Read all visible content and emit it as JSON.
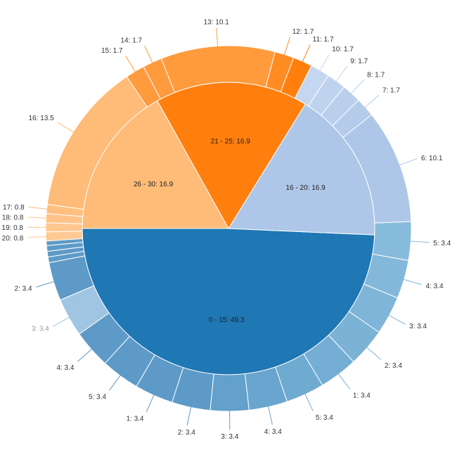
{
  "chart_data": {
    "type": "sunburst",
    "title": "",
    "inner": [
      {
        "label": "0 - 15: 49.3",
        "value": 49.3,
        "color": "#1f77b4"
      },
      {
        "label": "16 - 20: 16.9",
        "value": 16.9,
        "color": "#aec7e8"
      },
      {
        "label": "21 - 25: 16.9",
        "value": 16.9,
        "color": "#ff7f0e"
      },
      {
        "label": "26 - 30: 16.9",
        "value": 16.9,
        "color": "#ffbb78"
      }
    ],
    "outer": [
      {
        "label": "",
        "value": 0.5,
        "color": "#5d9ac7"
      },
      {
        "label": "",
        "value": 0.5,
        "color": "#5d9ac7"
      },
      {
        "label": "",
        "value": 0.5,
        "color": "#5d9ac7"
      },
      {
        "label": "",
        "value": 0.5,
        "color": "#5d9ac7"
      },
      {
        "label": "",
        "value": 0.5,
        "color": "#5d9ac7"
      },
      {
        "label": "",
        "value": 0.5,
        "color": "#5d9ac7"
      },
      {
        "label": "2: 3.4",
        "value": 3.4,
        "color": "#5d9ac7"
      },
      {
        "label": "3: 3.4",
        "value": 3.4,
        "color": "#9fc5e2",
        "faded": true
      },
      {
        "label": "4: 3.4",
        "value": 3.4,
        "color": "#5d9ac7"
      },
      {
        "label": "5: 3.4",
        "value": 3.4,
        "color": "#5d9ac7"
      },
      {
        "label": "1: 3.4",
        "value": 3.4,
        "color": "#5d9ac7"
      },
      {
        "label": "2: 3.4",
        "value": 3.4,
        "color": "#5d9ac7"
      },
      {
        "label": "3: 3.4",
        "value": 3.4,
        "color": "#63a0cb"
      },
      {
        "label": "4: 3.4",
        "value": 3.4,
        "color": "#69a5ce"
      },
      {
        "label": "5: 3.4",
        "value": 3.4,
        "color": "#6faad1"
      },
      {
        "label": "1: 3.4",
        "value": 3.4,
        "color": "#75aed4"
      },
      {
        "label": "2: 3.4",
        "value": 3.4,
        "color": "#7bb2d6"
      },
      {
        "label": "3: 3.4",
        "value": 3.4,
        "color": "#7fb5d8"
      },
      {
        "label": "4: 3.4",
        "value": 3.4,
        "color": "#83b8da"
      },
      {
        "label": "5: 3.4",
        "value": 3.4,
        "color": "#87bbdc"
      },
      {
        "label": "6: 10.1",
        "value": 10.1,
        "color": "#aec7e8"
      },
      {
        "label": "7: 1.7",
        "value": 1.7,
        "color": "#b4cbea"
      },
      {
        "label": "8: 1.7",
        "value": 1.7,
        "color": "#b9cfec"
      },
      {
        "label": "9: 1.7",
        "value": 1.7,
        "color": "#bfd3ee"
      },
      {
        "label": "10: 1.7",
        "value": 1.7,
        "color": "#c5d7f0"
      },
      {
        "label": "11: 1.7",
        "value": 1.7,
        "color": "#ff7f0e"
      },
      {
        "label": "12: 1.7",
        "value": 1.7,
        "color": "#ff8c23"
      },
      {
        "label": "13: 10.1",
        "value": 10.1,
        "color": "#ff9a3d"
      },
      {
        "label": "14: 1.7",
        "value": 1.7,
        "color": "#ff9a3d"
      },
      {
        "label": "15: 1.7",
        "value": 1.7,
        "color": "#ff9a3d"
      },
      {
        "label": "16: 13.5",
        "value": 13.5,
        "color": "#ffbb78"
      },
      {
        "label": "17: 0.8",
        "value": 0.8,
        "color": "#ffbf80"
      },
      {
        "label": "18: 0.8",
        "value": 0.8,
        "color": "#ffc388"
      },
      {
        "label": "19: 0.8",
        "value": 0.8,
        "color": "#ffc68e"
      },
      {
        "label": "20: 0.8",
        "value": 0.8,
        "color": "#ffc994"
      }
    ]
  }
}
